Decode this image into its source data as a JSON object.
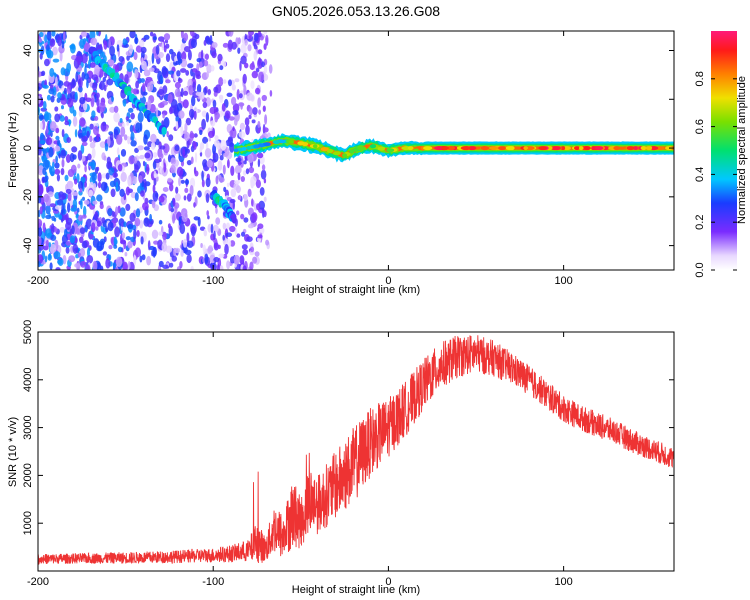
{
  "title": "GN05.2026.053.13.26.G08",
  "colors": {
    "snr_line": "#ee3333",
    "axis": "#000000",
    "background": "#ffffff"
  },
  "chart_data": [
    {
      "type": "heatmap",
      "xlabel": "Height of straight line (km)",
      "ylabel": "Frequency (Hz)",
      "xlim": [
        -200,
        163
      ],
      "ylim": [
        -50,
        48
      ],
      "xticks": [
        -200,
        -100,
        0,
        100
      ],
      "xtick_labels": [
        "-200",
        "-100",
        "0",
        "100"
      ],
      "yticks": [
        -40,
        -20,
        0,
        20,
        40
      ],
      "ytick_labels": [
        "-40",
        "-20",
        "0",
        "20",
        "40"
      ],
      "colorbar": {
        "label": "Normalized spectral amplitude",
        "range": [
          0,
          1
        ],
        "ticks": [
          0.0,
          0.2,
          0.4,
          0.6,
          0.8
        ],
        "tick_labels": [
          "0.0",
          "0.2",
          "0.4",
          "0.6",
          "0.8"
        ]
      },
      "noise_region": {
        "x_from": -200,
        "x_to": -70,
        "freq_from": -50,
        "freq_to": 48
      },
      "signal_track": {
        "x": [
          -88,
          -80,
          -70,
          -60,
          -50,
          -40,
          -30,
          -25,
          -20,
          -10,
          0,
          10,
          20,
          40,
          60,
          80,
          100,
          120,
          140,
          163
        ],
        "freq": [
          -1,
          0,
          1.5,
          3,
          2,
          0.5,
          -2,
          -3,
          -1,
          1,
          -1,
          0,
          0,
          0,
          0,
          0,
          0,
          0,
          0,
          0
        ],
        "amplitude": [
          0.35,
          0.45,
          0.4,
          0.5,
          0.7,
          0.8,
          0.75,
          0.65,
          0.6,
          0.6,
          0.7,
          0.9,
          0.95,
          0.95,
          0.95,
          0.95,
          0.95,
          0.95,
          0.95,
          0.95
        ]
      },
      "alias_tracks": [
        {
          "x": [
            -170,
            -160,
            -150,
            -140,
            -128
          ],
          "freq": [
            40,
            32,
            24,
            16,
            7
          ],
          "amplitude": [
            0.25,
            0.45,
            0.4,
            0.4,
            0.35
          ]
        },
        {
          "x": [
            -100,
            -96,
            -92,
            -88
          ],
          "freq": [
            -19,
            -22,
            -25,
            -29
          ],
          "amplitude": [
            0.3,
            0.45,
            0.4,
            0.25
          ]
        }
      ]
    },
    {
      "type": "line",
      "xlabel": "Height of straight line (km)",
      "ylabel": "SNR (10 * v/v)",
      "xlim": [
        -200,
        163
      ],
      "ylim": [
        0,
        5000
      ],
      "xticks": [
        -200,
        -100,
        0,
        100
      ],
      "xtick_labels": [
        "-200",
        "-100",
        "0",
        "100"
      ],
      "yticks": [
        1000,
        2000,
        3000,
        4000,
        5000
      ],
      "ytick_labels": [
        "1000",
        "2000",
        "3000",
        "4000",
        "5000"
      ],
      "series": [
        {
          "name": "SNR",
          "x": [
            -200,
            -180,
            -160,
            -140,
            -120,
            -100,
            -90,
            -80,
            -75,
            -70,
            -65,
            -60,
            -55,
            -50,
            -45,
            -40,
            -30,
            -20,
            -10,
            0,
            10,
            20,
            30,
            40,
            50,
            60,
            70,
            80,
            90,
            100,
            110,
            120,
            130,
            140,
            150,
            163
          ],
          "y": [
            250,
            260,
            270,
            280,
            300,
            330,
            360,
            420,
            600,
            450,
            900,
            700,
            1200,
            1000,
            1500,
            1400,
            1800,
            2200,
            2700,
            3000,
            3400,
            3900,
            4300,
            4500,
            4550,
            4450,
            4250,
            4000,
            3700,
            3400,
            3200,
            3050,
            2900,
            2700,
            2550,
            2350
          ],
          "noise_amplitude": [
            120,
            120,
            130,
            140,
            150,
            170,
            200,
            260,
            500,
            300,
            600,
            550,
            800,
            600,
            800,
            700,
            800,
            900,
            800,
            700,
            650,
            600,
            550,
            500,
            450,
            420,
            380,
            350,
            330,
            320,
            300,
            300,
            280,
            280,
            260,
            260
          ]
        }
      ]
    }
  ]
}
